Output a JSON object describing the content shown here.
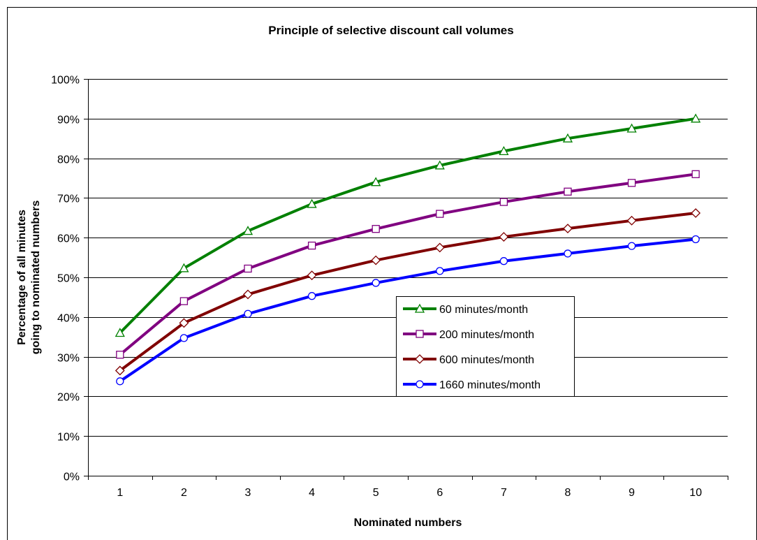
{
  "chart_data": {
    "type": "line",
    "title": "Principle of selective discount call volumes",
    "xlabel": "Nominated numbers",
    "ylabel": "Percentage of all minutes going to nominated numbers",
    "ylabel_lines": [
      "Percentage of all minutes",
      "going to nominated numbers"
    ],
    "x": [
      1,
      2,
      3,
      4,
      5,
      6,
      7,
      8,
      9,
      10
    ],
    "ylim": [
      0,
      100
    ],
    "yticks": [
      0,
      10,
      20,
      30,
      40,
      50,
      60,
      70,
      80,
      90,
      100
    ],
    "ytick_labels": [
      "0%",
      "10%",
      "20%",
      "30%",
      "40%",
      "50%",
      "60%",
      "70%",
      "80%",
      "90%",
      "100%"
    ],
    "grid": "horizontal",
    "legend_position": "center-right",
    "series": [
      {
        "name": "60 minutes/month",
        "marker": "triangle",
        "color": "#008000",
        "values": [
          36,
          52.3,
          61.7,
          68.5,
          74,
          78.2,
          81.8,
          85,
          87.5,
          90
        ]
      },
      {
        "name": "200 minutes/month",
        "marker": "square",
        "color": "#800080",
        "values": [
          30.5,
          44,
          52.2,
          58,
          62.2,
          66,
          69,
          71.6,
          73.8,
          76
        ]
      },
      {
        "name": "600 minutes/month",
        "marker": "diamond",
        "color": "#800000",
        "values": [
          26.5,
          38.5,
          45.7,
          50.5,
          54.3,
          57.5,
          60.2,
          62.3,
          64.3,
          66.2
        ]
      },
      {
        "name": "1660 minutes/month",
        "marker": "circle",
        "color": "#0000ff",
        "values": [
          23.8,
          34.7,
          40.8,
          45.3,
          48.6,
          51.6,
          54.1,
          56,
          57.9,
          59.6
        ]
      }
    ]
  }
}
